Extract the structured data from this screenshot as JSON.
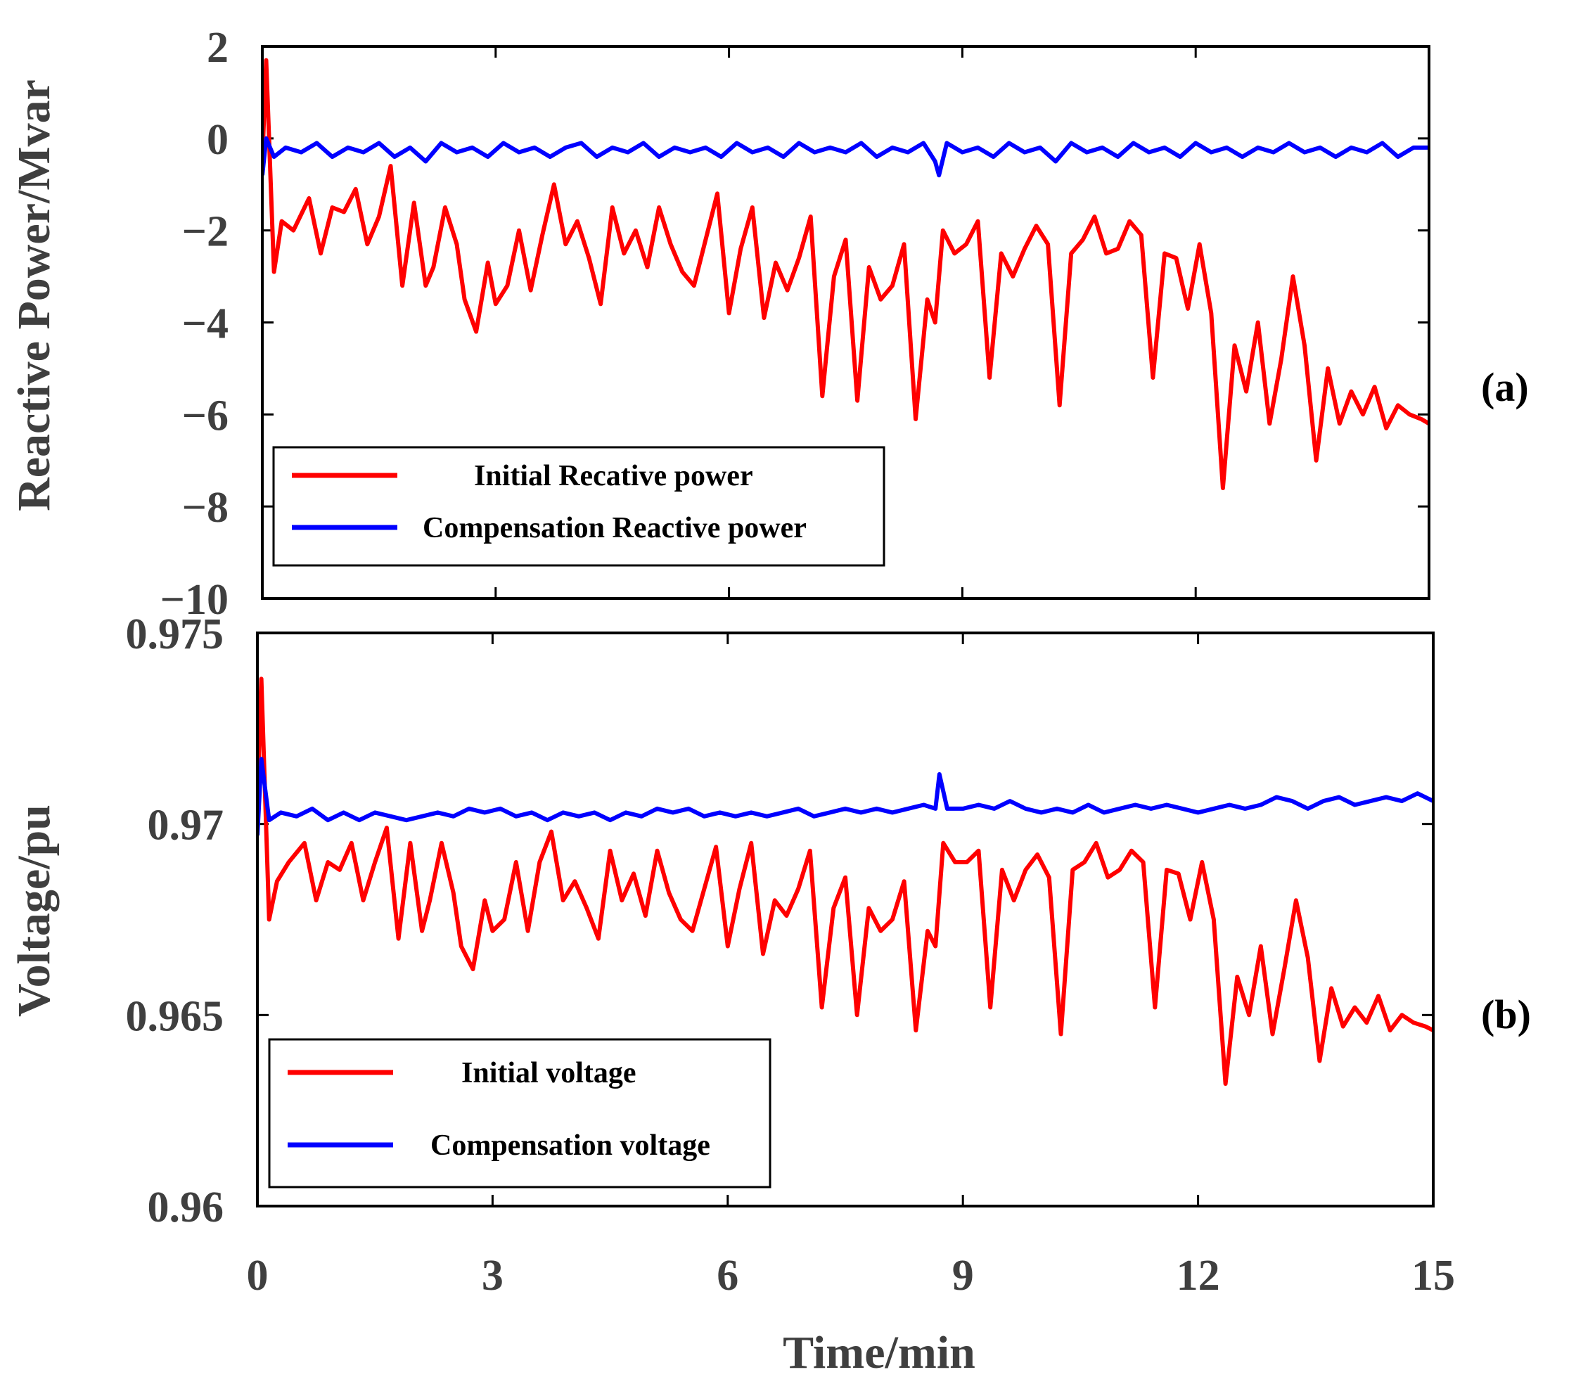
{
  "colors": {
    "initial": "#ff0000",
    "compensation": "#0000ff",
    "axis": "#000000",
    "text": "#3f3f3f"
  },
  "xlabel": "Time/min",
  "xticks": [
    "0",
    "3",
    "6",
    "9",
    "12",
    "15"
  ],
  "chart_data": [
    {
      "type": "line",
      "panel": "(a)",
      "title": "",
      "xlabel": "Time/min",
      "ylabel": "Reactive Power/Mvar",
      "xlim": [
        0,
        15
      ],
      "ylim": [
        -10,
        2
      ],
      "xticks": [
        0,
        3,
        6,
        9,
        12,
        15
      ],
      "yticks": [
        2,
        0,
        -2,
        -4,
        -6,
        -8,
        -10
      ],
      "ytick_labels": [
        "2",
        "0",
        "−2",
        "−4",
        "−6",
        "−8",
        "−10"
      ],
      "legend_position": "bottom-left",
      "grid": false,
      "series": [
        {
          "name": "Initial Recative power",
          "color": "#ff0000",
          "x": [
            0.0,
            0.05,
            0.15,
            0.25,
            0.4,
            0.6,
            0.75,
            0.9,
            1.05,
            1.2,
            1.35,
            1.5,
            1.65,
            1.8,
            1.95,
            2.1,
            2.2,
            2.35,
            2.5,
            2.6,
            2.75,
            2.9,
            3.0,
            3.15,
            3.3,
            3.45,
            3.6,
            3.75,
            3.9,
            4.05,
            4.2,
            4.35,
            4.5,
            4.65,
            4.8,
            4.95,
            5.1,
            5.25,
            5.4,
            5.55,
            5.7,
            5.85,
            6.0,
            6.15,
            6.3,
            6.45,
            6.6,
            6.75,
            6.9,
            7.05,
            7.2,
            7.35,
            7.5,
            7.65,
            7.8,
            7.95,
            8.1,
            8.25,
            8.4,
            8.55,
            8.65,
            8.75,
            8.9,
            9.05,
            9.2,
            9.35,
            9.5,
            9.65,
            9.8,
            9.95,
            10.1,
            10.25,
            10.4,
            10.55,
            10.7,
            10.85,
            11.0,
            11.15,
            11.3,
            11.45,
            11.6,
            11.75,
            11.9,
            12.05,
            12.2,
            12.35,
            12.5,
            12.65,
            12.8,
            12.95,
            13.1,
            13.25,
            13.4,
            13.55,
            13.7,
            13.85,
            14.0,
            14.15,
            14.3,
            14.45,
            14.6,
            14.75,
            14.9,
            15.0
          ],
          "values": [
            -0.5,
            1.7,
            -2.9,
            -1.8,
            -2.0,
            -1.3,
            -2.5,
            -1.5,
            -1.6,
            -1.1,
            -2.3,
            -1.7,
            -0.6,
            -3.2,
            -1.4,
            -3.2,
            -2.8,
            -1.5,
            -2.3,
            -3.5,
            -4.2,
            -2.7,
            -3.6,
            -3.2,
            -2.0,
            -3.3,
            -2.1,
            -1.0,
            -2.3,
            -1.8,
            -2.6,
            -3.6,
            -1.5,
            -2.5,
            -2.0,
            -2.8,
            -1.5,
            -2.3,
            -2.9,
            -3.2,
            -2.2,
            -1.2,
            -3.8,
            -2.4,
            -1.5,
            -3.9,
            -2.7,
            -3.3,
            -2.6,
            -1.7,
            -5.6,
            -3.0,
            -2.2,
            -5.7,
            -2.8,
            -3.5,
            -3.2,
            -2.3,
            -6.1,
            -3.5,
            -4.0,
            -2.0,
            -2.5,
            -2.3,
            -1.8,
            -5.2,
            -2.5,
            -3.0,
            -2.4,
            -1.9,
            -2.3,
            -5.8,
            -2.5,
            -2.2,
            -1.7,
            -2.5,
            -2.4,
            -1.8,
            -2.1,
            -5.2,
            -2.5,
            -2.6,
            -3.7,
            -2.3,
            -3.8,
            -7.6,
            -4.5,
            -5.5,
            -4.0,
            -6.2,
            -4.8,
            -3.0,
            -4.5,
            -7.0,
            -5.0,
            -6.2,
            -5.5,
            -6.0,
            -5.4,
            -6.3,
            -5.8,
            -6.0,
            -6.1,
            -6.2
          ]
        },
        {
          "name": "Compensation Reactive power",
          "color": "#0000ff",
          "x": [
            0.0,
            0.05,
            0.15,
            0.3,
            0.5,
            0.7,
            0.9,
            1.1,
            1.3,
            1.5,
            1.7,
            1.9,
            2.1,
            2.3,
            2.5,
            2.7,
            2.9,
            3.1,
            3.3,
            3.5,
            3.7,
            3.9,
            4.1,
            4.3,
            4.5,
            4.7,
            4.9,
            5.1,
            5.3,
            5.5,
            5.7,
            5.9,
            6.1,
            6.3,
            6.5,
            6.7,
            6.9,
            7.1,
            7.3,
            7.5,
            7.7,
            7.9,
            8.1,
            8.3,
            8.5,
            8.65,
            8.7,
            8.8,
            9.0,
            9.2,
            9.4,
            9.6,
            9.8,
            10.0,
            10.2,
            10.4,
            10.6,
            10.8,
            11.0,
            11.2,
            11.4,
            11.6,
            11.8,
            12.0,
            12.2,
            12.4,
            12.6,
            12.8,
            13.0,
            13.2,
            13.4,
            13.6,
            13.8,
            14.0,
            14.2,
            14.4,
            14.6,
            14.8,
            15.0
          ],
          "values": [
            -0.8,
            0.0,
            -0.4,
            -0.2,
            -0.3,
            -0.1,
            -0.4,
            -0.2,
            -0.3,
            -0.1,
            -0.4,
            -0.2,
            -0.5,
            -0.1,
            -0.3,
            -0.2,
            -0.4,
            -0.1,
            -0.3,
            -0.2,
            -0.4,
            -0.2,
            -0.1,
            -0.4,
            -0.2,
            -0.3,
            -0.1,
            -0.4,
            -0.2,
            -0.3,
            -0.2,
            -0.4,
            -0.1,
            -0.3,
            -0.2,
            -0.4,
            -0.1,
            -0.3,
            -0.2,
            -0.3,
            -0.1,
            -0.4,
            -0.2,
            -0.3,
            -0.1,
            -0.5,
            -0.8,
            -0.1,
            -0.3,
            -0.2,
            -0.4,
            -0.1,
            -0.3,
            -0.2,
            -0.5,
            -0.1,
            -0.3,
            -0.2,
            -0.4,
            -0.1,
            -0.3,
            -0.2,
            -0.4,
            -0.1,
            -0.3,
            -0.2,
            -0.4,
            -0.2,
            -0.3,
            -0.1,
            -0.3,
            -0.2,
            -0.4,
            -0.2,
            -0.3,
            -0.1,
            -0.4,
            -0.2,
            -0.2
          ]
        }
      ]
    },
    {
      "type": "line",
      "panel": "(b)",
      "title": "",
      "xlabel": "Time/min",
      "ylabel": "Voltage/pu",
      "xlim": [
        0,
        15
      ],
      "ylim": [
        0.96,
        0.975
      ],
      "xticks": [
        0,
        3,
        6,
        9,
        12,
        15
      ],
      "yticks": [
        0.975,
        0.97,
        0.965,
        0.96
      ],
      "ytick_labels": [
        "0.975",
        "0.97",
        "0.965",
        "0.96"
      ],
      "legend_position": "bottom-left",
      "grid": false,
      "series": [
        {
          "name": "Initial voltage",
          "color": "#ff0000",
          "x": [
            0.0,
            0.05,
            0.15,
            0.25,
            0.4,
            0.6,
            0.75,
            0.9,
            1.05,
            1.2,
            1.35,
            1.5,
            1.65,
            1.8,
            1.95,
            2.1,
            2.2,
            2.35,
            2.5,
            2.6,
            2.75,
            2.9,
            3.0,
            3.15,
            3.3,
            3.45,
            3.6,
            3.75,
            3.9,
            4.05,
            4.2,
            4.35,
            4.5,
            4.65,
            4.8,
            4.95,
            5.1,
            5.25,
            5.4,
            5.55,
            5.7,
            5.85,
            6.0,
            6.15,
            6.3,
            6.45,
            6.6,
            6.75,
            6.9,
            7.05,
            7.2,
            7.35,
            7.5,
            7.65,
            7.8,
            7.95,
            8.1,
            8.25,
            8.4,
            8.55,
            8.65,
            8.75,
            8.9,
            9.05,
            9.2,
            9.35,
            9.5,
            9.65,
            9.8,
            9.95,
            10.1,
            10.25,
            10.4,
            10.55,
            10.7,
            10.85,
            11.0,
            11.15,
            11.3,
            11.45,
            11.6,
            11.75,
            11.9,
            12.05,
            12.2,
            12.35,
            12.5,
            12.65,
            12.8,
            12.95,
            13.1,
            13.25,
            13.4,
            13.55,
            13.7,
            13.85,
            14.0,
            14.15,
            14.3,
            14.45,
            14.6,
            14.75,
            14.9,
            15.0
          ],
          "values": [
            0.9705,
            0.9738,
            0.9675,
            0.9685,
            0.969,
            0.9695,
            0.968,
            0.969,
            0.9688,
            0.9695,
            0.968,
            0.969,
            0.9699,
            0.967,
            0.9695,
            0.9672,
            0.968,
            0.9695,
            0.9682,
            0.9668,
            0.9662,
            0.968,
            0.9672,
            0.9675,
            0.969,
            0.9672,
            0.969,
            0.9698,
            0.968,
            0.9685,
            0.9678,
            0.967,
            0.9693,
            0.968,
            0.9687,
            0.9676,
            0.9693,
            0.9682,
            0.9675,
            0.9672,
            0.9683,
            0.9694,
            0.9668,
            0.9683,
            0.9695,
            0.9666,
            0.968,
            0.9676,
            0.9683,
            0.9693,
            0.9652,
            0.9678,
            0.9686,
            0.965,
            0.9678,
            0.9672,
            0.9675,
            0.9685,
            0.9646,
            0.9672,
            0.9668,
            0.9695,
            0.969,
            0.969,
            0.9693,
            0.9652,
            0.9688,
            0.968,
            0.9688,
            0.9692,
            0.9686,
            0.9645,
            0.9688,
            0.969,
            0.9695,
            0.9686,
            0.9688,
            0.9693,
            0.969,
            0.9652,
            0.9688,
            0.9687,
            0.9675,
            0.969,
            0.9675,
            0.9632,
            0.966,
            0.965,
            0.9668,
            0.9645,
            0.9662,
            0.968,
            0.9665,
            0.9638,
            0.9657,
            0.9647,
            0.9652,
            0.9648,
            0.9655,
            0.9646,
            0.965,
            0.9648,
            0.9647,
            0.9646
          ]
        },
        {
          "name": "Compensation voltage",
          "color": "#0000ff",
          "x": [
            0.0,
            0.05,
            0.15,
            0.3,
            0.5,
            0.7,
            0.9,
            1.1,
            1.3,
            1.5,
            1.7,
            1.9,
            2.1,
            2.3,
            2.5,
            2.7,
            2.9,
            3.1,
            3.3,
            3.5,
            3.7,
            3.9,
            4.1,
            4.3,
            4.5,
            4.7,
            4.9,
            5.1,
            5.3,
            5.5,
            5.7,
            5.9,
            6.1,
            6.3,
            6.5,
            6.7,
            6.9,
            7.1,
            7.3,
            7.5,
            7.7,
            7.9,
            8.1,
            8.3,
            8.5,
            8.65,
            8.7,
            8.8,
            9.0,
            9.2,
            9.4,
            9.6,
            9.8,
            10.0,
            10.2,
            10.4,
            10.6,
            10.8,
            11.0,
            11.2,
            11.4,
            11.6,
            11.8,
            12.0,
            12.2,
            12.4,
            12.6,
            12.8,
            13.0,
            13.2,
            13.4,
            13.6,
            13.8,
            14.0,
            14.2,
            14.4,
            14.6,
            14.8,
            15.0
          ],
          "values": [
            0.9697,
            0.9717,
            0.9701,
            0.9703,
            0.9702,
            0.9704,
            0.9701,
            0.9703,
            0.9701,
            0.9703,
            0.9702,
            0.9701,
            0.9702,
            0.9703,
            0.9702,
            0.9704,
            0.9703,
            0.9704,
            0.9702,
            0.9703,
            0.9701,
            0.9703,
            0.9702,
            0.9703,
            0.9701,
            0.9703,
            0.9702,
            0.9704,
            0.9703,
            0.9704,
            0.9702,
            0.9703,
            0.9702,
            0.9703,
            0.9702,
            0.9703,
            0.9704,
            0.9702,
            0.9703,
            0.9704,
            0.9703,
            0.9704,
            0.9703,
            0.9704,
            0.9705,
            0.9704,
            0.9713,
            0.9704,
            0.9704,
            0.9705,
            0.9704,
            0.9706,
            0.9704,
            0.9703,
            0.9704,
            0.9703,
            0.9705,
            0.9703,
            0.9704,
            0.9705,
            0.9704,
            0.9705,
            0.9704,
            0.9703,
            0.9704,
            0.9705,
            0.9704,
            0.9705,
            0.9707,
            0.9706,
            0.9704,
            0.9706,
            0.9707,
            0.9705,
            0.9706,
            0.9707,
            0.9706,
            0.9708,
            0.9706
          ]
        }
      ]
    }
  ]
}
